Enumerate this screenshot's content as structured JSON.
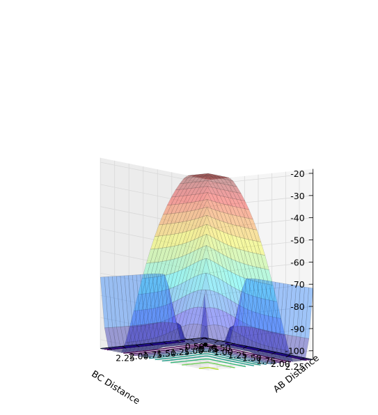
{
  "chart_data": {
    "type": "surface3d",
    "title": "",
    "xlabel": "AB Distance",
    "ylabel": "BC Distance",
    "zlabel": "",
    "xlim": [
      0.5,
      2.4
    ],
    "ylim": [
      0.5,
      2.4
    ],
    "zlim": [
      -104,
      -18
    ],
    "x_ticks": [
      "0.50",
      "0.75",
      "1.00",
      "1.25",
      "1.50",
      "1.75",
      "2.00",
      "2.25"
    ],
    "y_ticks": [
      "0.50",
      "0.75",
      "1.00",
      "1.25",
      "1.50",
      "1.75",
      "2.00",
      "2.25"
    ],
    "z_ticks": [
      "-20",
      "-30",
      "-40",
      "-50",
      "-60",
      "-70",
      "-80",
      "-90",
      "-100"
    ],
    "surface": {
      "colormap": "jet",
      "alpha": 0.35,
      "description_of_shape": "two valleys along AB≈0.74 and BC≈0.74 meeting at a saddle region near AB≈BC≈0.9; high plateau near AB, BC large"
    },
    "contour_floor": {
      "colormap": "viridis",
      "levels": 12,
      "offset": -104
    },
    "marker": {
      "x": 0.9,
      "y": 0.9,
      "color": "#000000"
    }
  }
}
